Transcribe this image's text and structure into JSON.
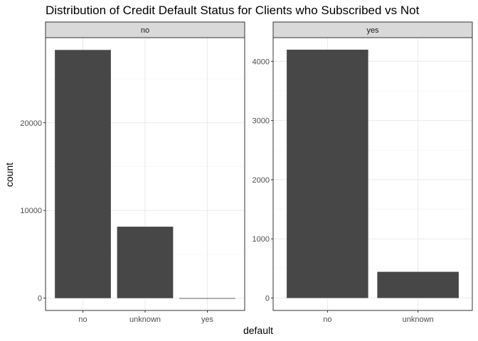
{
  "chart_data": {
    "type": "bar",
    "title": "Distribution of Credit Default Status for Clients who Subscribed vs Not",
    "xlabel": "default",
    "ylabel": "count",
    "grid": true,
    "facets": [
      {
        "strip_label": "no",
        "categories": [
          "no",
          "unknown",
          "yes"
        ],
        "values": [
          28300,
          8150,
          3
        ],
        "ylim": [
          -1400,
          29700
        ],
        "yticks": [
          0,
          10000,
          20000
        ],
        "ytick_labels": [
          "0",
          "10000",
          "20000"
        ]
      },
      {
        "strip_label": "yes",
        "categories": [
          "no",
          "unknown"
        ],
        "values": [
          4197,
          443
        ],
        "ylim": [
          -210,
          4400
        ],
        "yticks": [
          0,
          1000,
          2000,
          3000,
          4000
        ],
        "ytick_labels": [
          "0",
          "1000",
          "2000",
          "3000",
          "4000"
        ]
      }
    ]
  }
}
